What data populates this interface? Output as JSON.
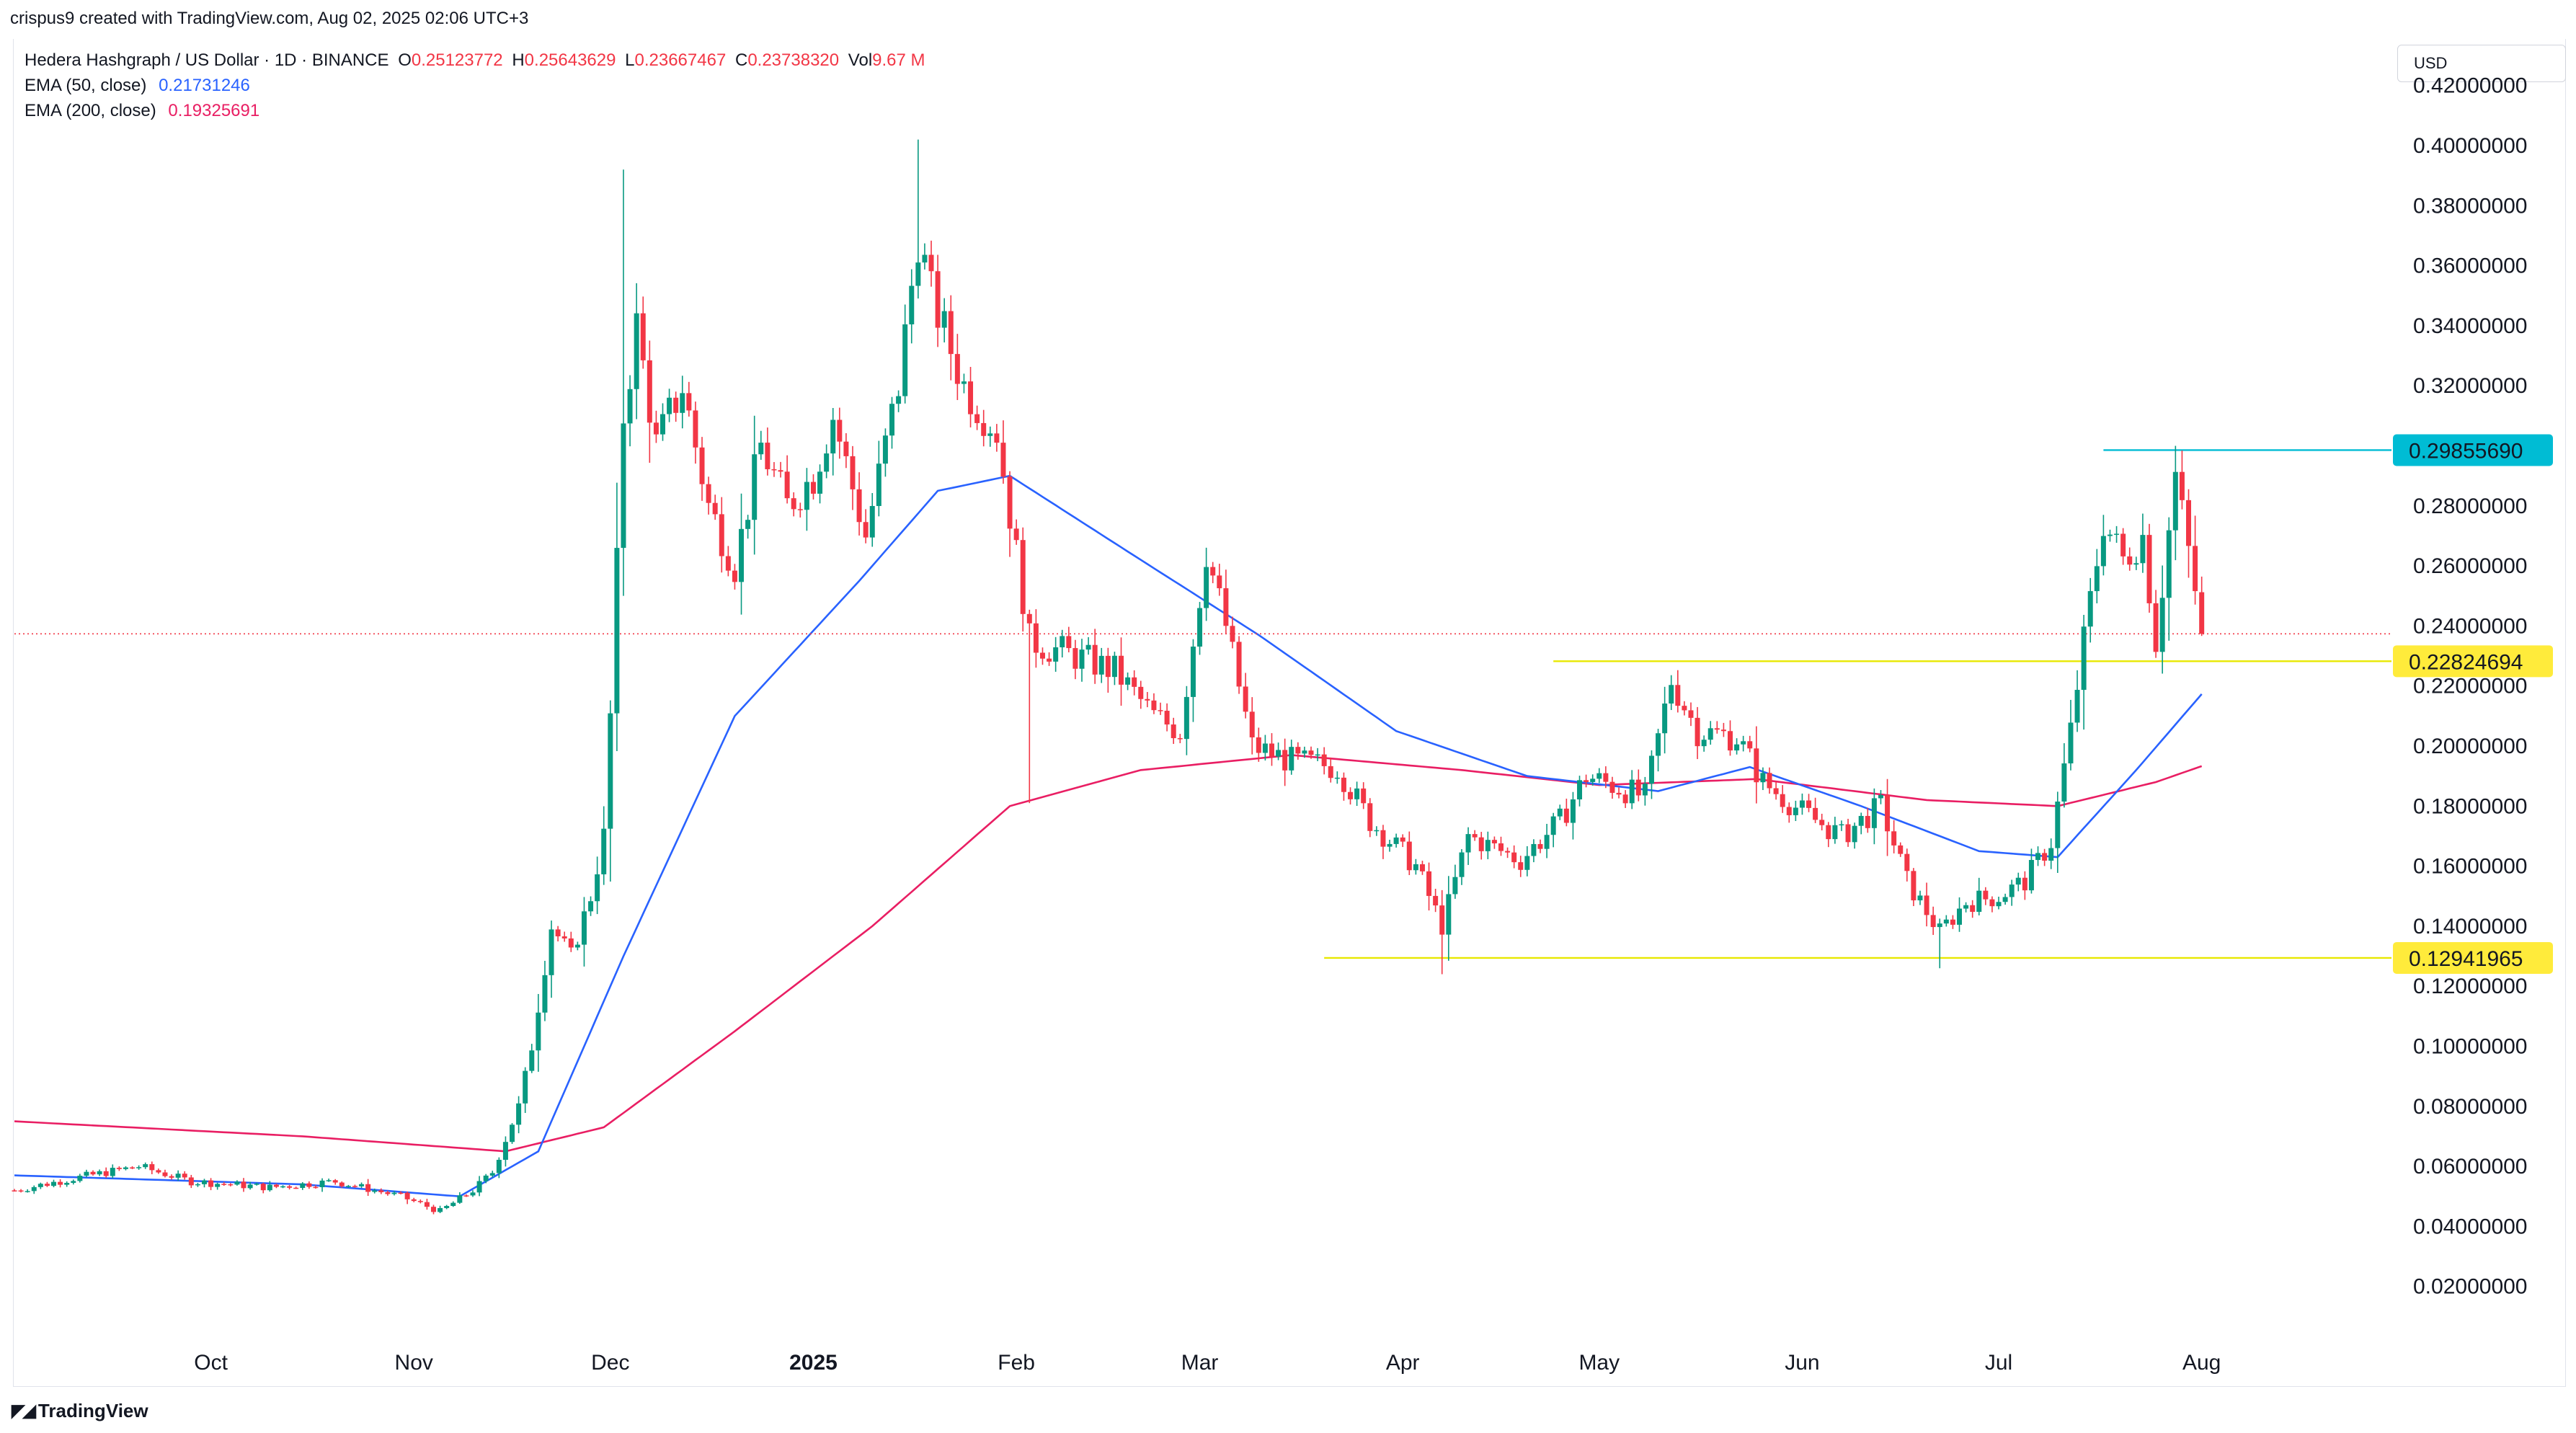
{
  "header": {
    "created_by": "crispus9 created with TradingView.com, Aug 02, 2025 02:06 UTC+3"
  },
  "legend": {
    "symbol": "Hedera Hashgraph / US Dollar · 1D · BINANCE",
    "ohlc": {
      "o_label": "O",
      "o_value": "0.25123772",
      "h_label": "H",
      "h_value": "0.25643629",
      "l_label": "L",
      "l_value": "0.23667467",
      "c_label": "C",
      "c_value": "0.23738320",
      "vol_label": "Vol",
      "vol_value": "9.67 M"
    },
    "ema50_label": "EMA (50, close)",
    "ema50_value": "0.21731246",
    "ema200_label": "EMA (200, close)",
    "ema200_value": "0.19325691"
  },
  "currency": "USD",
  "footer": {
    "brand": "TradingView"
  },
  "colors": {
    "up": "#089981",
    "down": "#f23645",
    "ema50": "#2962ff",
    "ema200": "#e91e63",
    "resistance": "#00bcd4",
    "support": "#e8e800",
    "label_yellow": "#ffeb3b",
    "label_cyan": "#22ab94"
  },
  "chart_data": {
    "type": "candlestick",
    "title": "Hedera Hashgraph / US Dollar · 1D · BINANCE",
    "ylim": [
      0.0,
      0.43
    ],
    "y_ticks": [
      "0.42000000",
      "0.40000000",
      "0.38000000",
      "0.36000000",
      "0.34000000",
      "0.32000000",
      "0.30000000",
      "0.28000000",
      "0.26000000",
      "0.24000000",
      "0.22000000",
      "0.20000000",
      "0.18000000",
      "0.16000000",
      "0.14000000",
      "0.12000000",
      "0.10000000",
      "0.08000000",
      "0.06000000",
      "0.04000000",
      "0.02000000"
    ],
    "x_ticks": [
      {
        "label": "Oct",
        "date": "2024-10-01"
      },
      {
        "label": "Nov",
        "date": "2024-11-01"
      },
      {
        "label": "Dec",
        "date": "2024-12-01"
      },
      {
        "label": "2025",
        "date": "2025-01-01",
        "bold": true
      },
      {
        "label": "Feb",
        "date": "2025-02-01"
      },
      {
        "label": "Mar",
        "date": "2025-03-01"
      },
      {
        "label": "Apr",
        "date": "2025-04-01"
      },
      {
        "label": "May",
        "date": "2025-05-01"
      },
      {
        "label": "Jun",
        "date": "2025-06-01"
      },
      {
        "label": "Jul",
        "date": "2025-07-01"
      },
      {
        "label": "Aug",
        "date": "2025-08-01"
      }
    ],
    "x_range": [
      "2024-09-01",
      "2025-08-28"
    ],
    "close_anchors": [
      [
        "2024-09-01",
        0.052
      ],
      [
        "2024-09-10",
        0.056
      ],
      [
        "2024-09-20",
        0.06
      ],
      [
        "2024-09-28",
        0.055
      ],
      [
        "2024-10-10",
        0.053
      ],
      [
        "2024-10-20",
        0.055
      ],
      [
        "2024-10-30",
        0.05
      ],
      [
        "2024-11-05",
        0.045
      ],
      [
        "2024-11-10",
        0.052
      ],
      [
        "2024-11-13",
        0.058
      ],
      [
        "2024-11-17",
        0.08
      ],
      [
        "2024-11-19",
        0.1
      ],
      [
        "2024-11-22",
        0.14
      ],
      [
        "2024-11-25",
        0.13
      ],
      [
        "2024-11-28",
        0.15
      ],
      [
        "2024-11-30",
        0.17
      ],
      [
        "2024-12-01",
        0.21
      ],
      [
        "2024-12-03",
        0.31
      ],
      [
        "2024-12-05",
        0.34
      ],
      [
        "2024-12-08",
        0.3
      ],
      [
        "2024-12-12",
        0.32
      ],
      [
        "2024-12-16",
        0.28
      ],
      [
        "2024-12-20",
        0.26
      ],
      [
        "2024-12-24",
        0.3
      ],
      [
        "2024-12-28",
        0.28
      ],
      [
        "2025-01-01",
        0.29
      ],
      [
        "2025-01-04",
        0.31
      ],
      [
        "2025-01-09",
        0.27
      ],
      [
        "2025-01-14",
        0.32
      ],
      [
        "2025-01-17",
        0.37
      ],
      [
        "2025-01-19",
        0.35
      ],
      [
        "2025-01-24",
        0.32
      ],
      [
        "2025-01-29",
        0.305
      ],
      [
        "2025-02-02",
        0.25
      ],
      [
        "2025-02-03",
        0.235
      ],
      [
        "2025-02-10",
        0.23
      ],
      [
        "2025-02-16",
        0.225
      ],
      [
        "2025-02-22",
        0.21
      ],
      [
        "2025-02-26",
        0.205
      ],
      [
        "2025-03-02",
        0.265
      ],
      [
        "2025-03-05",
        0.24
      ],
      [
        "2025-03-09",
        0.2
      ],
      [
        "2025-03-15",
        0.195
      ],
      [
        "2025-03-22",
        0.193
      ],
      [
        "2025-03-27",
        0.175
      ],
      [
        "2025-04-03",
        0.16
      ],
      [
        "2025-04-07",
        0.14
      ],
      [
        "2025-04-11",
        0.17
      ],
      [
        "2025-04-19",
        0.162
      ],
      [
        "2025-04-25",
        0.175
      ],
      [
        "2025-04-29",
        0.19
      ],
      [
        "2025-05-08",
        0.183
      ],
      [
        "2025-05-12",
        0.222
      ],
      [
        "2025-05-16",
        0.205
      ],
      [
        "2025-05-22",
        0.203
      ],
      [
        "2025-05-26",
        0.188
      ],
      [
        "2025-06-01",
        0.178
      ],
      [
        "2025-06-07",
        0.17
      ],
      [
        "2025-06-13",
        0.18
      ],
      [
        "2025-06-17",
        0.155
      ],
      [
        "2025-06-22",
        0.138
      ],
      [
        "2025-06-26",
        0.148
      ],
      [
        "2025-07-01",
        0.15
      ],
      [
        "2025-07-05",
        0.155
      ],
      [
        "2025-07-09",
        0.168
      ],
      [
        "2025-07-12",
        0.205
      ],
      [
        "2025-07-14",
        0.235
      ],
      [
        "2025-07-17",
        0.275
      ],
      [
        "2025-07-20",
        0.262
      ],
      [
        "2025-07-23",
        0.27
      ],
      [
        "2025-07-25",
        0.235
      ],
      [
        "2025-07-28",
        0.29
      ],
      [
        "2025-07-31",
        0.252
      ],
      [
        "2025-08-01",
        0.2374
      ]
    ],
    "last_candle": {
      "open": 0.25123772,
      "high": 0.25643629,
      "low": 0.23667467,
      "close": 0.2373832
    },
    "wick_extremes": [
      {
        "date": "2024-12-03",
        "high": 0.392
      },
      {
        "date": "2025-01-17",
        "high": 0.402
      },
      {
        "date": "2025-02-03",
        "low": 0.181
      },
      {
        "date": "2025-04-07",
        "low": 0.124
      },
      {
        "date": "2025-06-22",
        "low": 0.126
      },
      {
        "date": "2025-07-28",
        "high": 0.3
      }
    ],
    "ema50_anchors": [
      [
        "2024-09-01",
        0.057
      ],
      [
        "2024-10-15",
        0.054
      ],
      [
        "2024-11-08",
        0.05
      ],
      [
        "2024-11-20",
        0.065
      ],
      [
        "2024-12-03",
        0.13
      ],
      [
        "2024-12-20",
        0.21
      ],
      [
        "2025-01-08",
        0.255
      ],
      [
        "2025-01-20",
        0.285
      ],
      [
        "2025-01-31",
        0.29
      ],
      [
        "2025-02-20",
        0.262
      ],
      [
        "2025-03-10",
        0.237
      ],
      [
        "2025-03-31",
        0.205
      ],
      [
        "2025-04-20",
        0.19
      ],
      [
        "2025-05-10",
        0.185
      ],
      [
        "2025-05-24",
        0.193
      ],
      [
        "2025-06-10",
        0.18
      ],
      [
        "2025-06-28",
        0.165
      ],
      [
        "2025-07-10",
        0.163
      ],
      [
        "2025-07-22",
        0.192
      ],
      [
        "2025-08-01",
        0.2173
      ]
    ],
    "ema200_anchors": [
      [
        "2024-09-01",
        0.075
      ],
      [
        "2024-10-15",
        0.07
      ],
      [
        "2024-11-15",
        0.065
      ],
      [
        "2024-11-30",
        0.073
      ],
      [
        "2024-12-20",
        0.105
      ],
      [
        "2025-01-10",
        0.14
      ],
      [
        "2025-01-31",
        0.18
      ],
      [
        "2025-02-20",
        0.192
      ],
      [
        "2025-03-15",
        0.197
      ],
      [
        "2025-04-10",
        0.192
      ],
      [
        "2025-05-01",
        0.187
      ],
      [
        "2025-05-25",
        0.189
      ],
      [
        "2025-06-20",
        0.182
      ],
      [
        "2025-07-10",
        0.18
      ],
      [
        "2025-07-25",
        0.188
      ],
      [
        "2025-08-01",
        0.1933
      ]
    ],
    "horizontal_lines": [
      {
        "name": "resistance",
        "value": 0.2985569,
        "label": "0.29855690",
        "from": "2025-07-17",
        "to": "2025-08-28",
        "color": "#00bcd4"
      },
      {
        "name": "support-mid",
        "value": 0.22824694,
        "label": "0.22824694",
        "from": "2025-04-24",
        "to": "2025-08-28",
        "color": "#e8e800"
      },
      {
        "name": "support-low",
        "value": 0.12941965,
        "label": "0.12941965",
        "from": "2025-03-20",
        "to": "2025-08-28",
        "color": "#e8e800"
      }
    ],
    "current_price": {
      "value": 0.2373832,
      "line_color": "#f23645"
    },
    "grid": false
  }
}
